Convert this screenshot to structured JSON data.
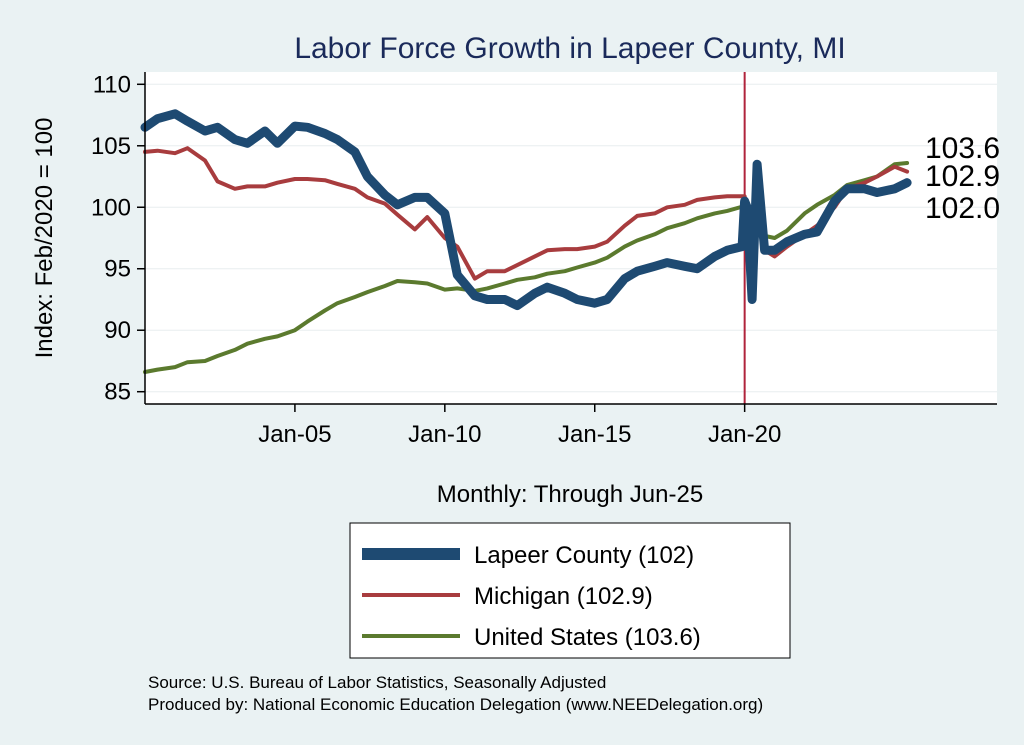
{
  "chart_data": {
    "type": "line",
    "title": "Labor Force Growth in Lapeer  County, MI",
    "xlabel": "Monthly: Through Jun-25",
    "ylabel": "Index: Feb/2020 = 100",
    "x_ticks": [
      "Jan-05",
      "Jan-10",
      "Jan-15",
      "Jan-20"
    ],
    "y_ticks": [
      85,
      90,
      95,
      100,
      105,
      110
    ],
    "ylim": [
      84,
      111
    ],
    "xlim": [
      "2000-01",
      "2028-06"
    ],
    "reference_line": {
      "x": "2020-01",
      "color": "#b0243c"
    },
    "grid": "horizontal",
    "legend_position": "bottom",
    "end_labels": [
      "103.6",
      "102.9",
      "102.0"
    ],
    "series": [
      {
        "name": "Lapeer  County (102)",
        "color": "#1e4a72",
        "points": [
          [
            "2000-01",
            106.5
          ],
          [
            "2000-06",
            107.2
          ],
          [
            "2001-01",
            107.6
          ],
          [
            "2001-06",
            107.0
          ],
          [
            "2002-01",
            106.2
          ],
          [
            "2002-06",
            106.5
          ],
          [
            "2003-01",
            105.5
          ],
          [
            "2003-06",
            105.2
          ],
          [
            "2004-01",
            106.2
          ],
          [
            "2004-06",
            105.2
          ],
          [
            "2005-01",
            106.6
          ],
          [
            "2005-06",
            106.5
          ],
          [
            "2006-01",
            106.0
          ],
          [
            "2006-06",
            105.5
          ],
          [
            "2007-01",
            104.5
          ],
          [
            "2007-06",
            102.5
          ],
          [
            "2008-01",
            101.0
          ],
          [
            "2008-06",
            100.2
          ],
          [
            "2009-01",
            100.8
          ],
          [
            "2009-06",
            100.8
          ],
          [
            "2010-01",
            99.5
          ],
          [
            "2010-06",
            94.5
          ],
          [
            "2011-01",
            92.8
          ],
          [
            "2011-06",
            92.5
          ],
          [
            "2012-01",
            92.5
          ],
          [
            "2012-06",
            92.0
          ],
          [
            "2013-01",
            93.0
          ],
          [
            "2013-06",
            93.5
          ],
          [
            "2014-01",
            93.0
          ],
          [
            "2014-06",
            92.5
          ],
          [
            "2015-01",
            92.2
          ],
          [
            "2015-06",
            92.5
          ],
          [
            "2016-01",
            94.2
          ],
          [
            "2016-06",
            94.8
          ],
          [
            "2017-01",
            95.2
          ],
          [
            "2017-06",
            95.5
          ],
          [
            "2018-01",
            95.2
          ],
          [
            "2018-06",
            95.0
          ],
          [
            "2019-01",
            96.0
          ],
          [
            "2019-06",
            96.5
          ],
          [
            "2019-12",
            96.8
          ],
          [
            "2020-01",
            100.5
          ],
          [
            "2020-02",
            100.0
          ],
          [
            "2020-04",
            92.5
          ],
          [
            "2020-06",
            103.5
          ],
          [
            "2020-09",
            96.5
          ],
          [
            "2021-01",
            96.5
          ],
          [
            "2021-06",
            97.2
          ],
          [
            "2022-01",
            97.8
          ],
          [
            "2022-06",
            98.0
          ],
          [
            "2023-01",
            100.5
          ],
          [
            "2023-06",
            101.5
          ],
          [
            "2024-01",
            101.5
          ],
          [
            "2024-06",
            101.2
          ],
          [
            "2025-01",
            101.5
          ],
          [
            "2025-06",
            102.0
          ]
        ]
      },
      {
        "name": "Michigan (102.9)",
        "color": "#a83c3e",
        "points": [
          [
            "2000-01",
            104.5
          ],
          [
            "2000-06",
            104.6
          ],
          [
            "2001-01",
            104.4
          ],
          [
            "2001-06",
            104.8
          ],
          [
            "2002-01",
            103.8
          ],
          [
            "2002-06",
            102.1
          ],
          [
            "2003-01",
            101.5
          ],
          [
            "2003-06",
            101.7
          ],
          [
            "2004-01",
            101.7
          ],
          [
            "2004-06",
            102.0
          ],
          [
            "2005-01",
            102.3
          ],
          [
            "2005-06",
            102.3
          ],
          [
            "2006-01",
            102.2
          ],
          [
            "2006-06",
            101.9
          ],
          [
            "2007-01",
            101.5
          ],
          [
            "2007-06",
            100.8
          ],
          [
            "2008-01",
            100.3
          ],
          [
            "2008-06",
            99.4
          ],
          [
            "2009-01",
            98.2
          ],
          [
            "2009-06",
            99.2
          ],
          [
            "2010-01",
            97.5
          ],
          [
            "2010-06",
            96.8
          ],
          [
            "2011-01",
            94.2
          ],
          [
            "2011-06",
            94.8
          ],
          [
            "2012-01",
            94.8
          ],
          [
            "2012-06",
            95.3
          ],
          [
            "2013-01",
            96.0
          ],
          [
            "2013-06",
            96.5
          ],
          [
            "2014-01",
            96.6
          ],
          [
            "2014-06",
            96.6
          ],
          [
            "2015-01",
            96.8
          ],
          [
            "2015-06",
            97.2
          ],
          [
            "2016-01",
            98.5
          ],
          [
            "2016-06",
            99.3
          ],
          [
            "2017-01",
            99.5
          ],
          [
            "2017-06",
            100.0
          ],
          [
            "2018-01",
            100.2
          ],
          [
            "2018-06",
            100.6
          ],
          [
            "2019-01",
            100.8
          ],
          [
            "2019-06",
            100.9
          ],
          [
            "2020-01",
            100.9
          ],
          [
            "2020-02",
            100.0
          ],
          [
            "2020-04",
            93.5
          ],
          [
            "2020-06",
            101.5
          ],
          [
            "2020-09",
            96.5
          ],
          [
            "2021-01",
            96.0
          ],
          [
            "2021-06",
            96.8
          ],
          [
            "2022-01",
            97.8
          ],
          [
            "2022-06",
            98.5
          ],
          [
            "2023-01",
            100.0
          ],
          [
            "2023-06",
            101.5
          ],
          [
            "2024-01",
            102.0
          ],
          [
            "2024-06",
            102.5
          ],
          [
            "2025-01",
            103.3
          ],
          [
            "2025-06",
            102.9
          ]
        ]
      },
      {
        "name": "United States (103.6)",
        "color": "#5b7a2e",
        "points": [
          [
            "2000-01",
            86.6
          ],
          [
            "2000-06",
            86.8
          ],
          [
            "2001-01",
            87.0
          ],
          [
            "2001-06",
            87.4
          ],
          [
            "2002-01",
            87.5
          ],
          [
            "2002-06",
            87.9
          ],
          [
            "2003-01",
            88.4
          ],
          [
            "2003-06",
            88.9
          ],
          [
            "2004-01",
            89.3
          ],
          [
            "2004-06",
            89.5
          ],
          [
            "2005-01",
            90.0
          ],
          [
            "2005-06",
            90.7
          ],
          [
            "2006-01",
            91.6
          ],
          [
            "2006-06",
            92.2
          ],
          [
            "2007-01",
            92.7
          ],
          [
            "2007-06",
            93.1
          ],
          [
            "2008-01",
            93.6
          ],
          [
            "2008-06",
            94.0
          ],
          [
            "2009-01",
            93.9
          ],
          [
            "2009-06",
            93.8
          ],
          [
            "2010-01",
            93.3
          ],
          [
            "2010-06",
            93.4
          ],
          [
            "2011-01",
            93.2
          ],
          [
            "2011-06",
            93.4
          ],
          [
            "2012-01",
            93.8
          ],
          [
            "2012-06",
            94.1
          ],
          [
            "2013-01",
            94.3
          ],
          [
            "2013-06",
            94.6
          ],
          [
            "2014-01",
            94.8
          ],
          [
            "2014-06",
            95.1
          ],
          [
            "2015-01",
            95.5
          ],
          [
            "2015-06",
            95.9
          ],
          [
            "2016-01",
            96.8
          ],
          [
            "2016-06",
            97.3
          ],
          [
            "2017-01",
            97.8
          ],
          [
            "2017-06",
            98.3
          ],
          [
            "2018-01",
            98.7
          ],
          [
            "2018-06",
            99.1
          ],
          [
            "2019-01",
            99.5
          ],
          [
            "2019-06",
            99.7
          ],
          [
            "2020-01",
            100.1
          ],
          [
            "2020-02",
            100.0
          ],
          [
            "2020-04",
            95.2
          ],
          [
            "2020-06",
            97.8
          ],
          [
            "2021-01",
            97.5
          ],
          [
            "2021-06",
            98.1
          ],
          [
            "2022-01",
            99.5
          ],
          [
            "2022-06",
            100.2
          ],
          [
            "2023-01",
            101.0
          ],
          [
            "2023-06",
            101.8
          ],
          [
            "2024-01",
            102.2
          ],
          [
            "2024-06",
            102.5
          ],
          [
            "2025-01",
            103.5
          ],
          [
            "2025-06",
            103.6
          ]
        ]
      }
    ],
    "legend_line_widths": [
      12,
      4,
      4
    ]
  },
  "notes": {
    "source": "Source: U.S. Bureau of Labor Statistics, Seasonally Adjusted",
    "produced_by": "Produced by: National Economic Education Delegation (www.NEEDelegation.org)"
  }
}
